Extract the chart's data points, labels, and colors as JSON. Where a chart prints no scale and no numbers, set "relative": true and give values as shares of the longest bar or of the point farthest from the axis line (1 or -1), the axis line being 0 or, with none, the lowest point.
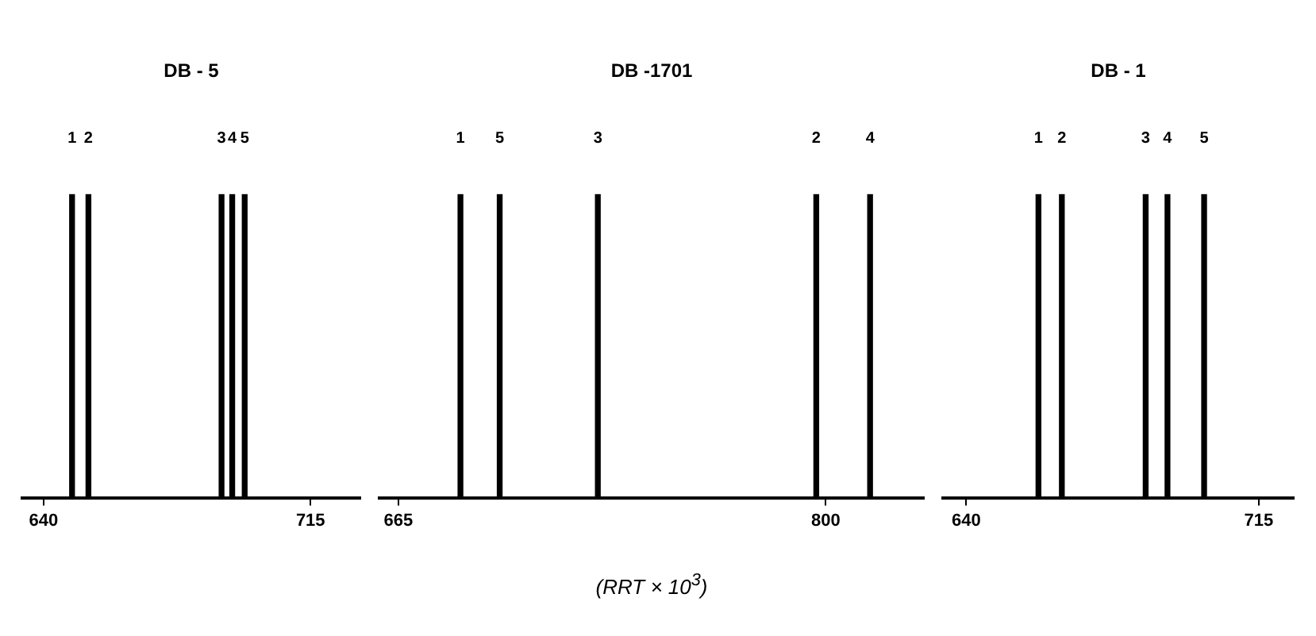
{
  "chart_data": [
    {
      "type": "bar",
      "title": "DB - 5",
      "relative": true,
      "x": [
        648,
        652.6,
        690,
        693,
        696.5
      ],
      "values": [
        1,
        1,
        1,
        1,
        1
      ],
      "color": "#000000",
      "xlim": [
        634,
        729
      ],
      "xticks": [
        640,
        715
      ],
      "annotations": [
        {
          "text": "1",
          "x": 648,
          "y": 1
        },
        {
          "text": "2",
          "x": 652.6,
          "y": 1
        },
        {
          "text": "3",
          "x": 690,
          "y": 1
        },
        {
          "text": "4",
          "x": 693,
          "y": 1
        },
        {
          "text": "5",
          "x": 696.5,
          "y": 1
        }
      ]
    },
    {
      "type": "bar",
      "title": "DB -1701",
      "xlabel": "(RRT × 10$^{3}$)",
      "relative": true,
      "x": [
        684.6,
        697,
        728,
        797,
        814
      ],
      "values": [
        1,
        1,
        1,
        1,
        1
      ],
      "color": "#000000",
      "xlim": [
        659,
        831
      ],
      "xticks": [
        665,
        800
      ],
      "annotations": [
        {
          "text": "1",
          "x": 684.6,
          "y": 1
        },
        {
          "text": "5",
          "x": 697,
          "y": 1
        },
        {
          "text": "3",
          "x": 728,
          "y": 1
        },
        {
          "text": "2",
          "x": 797,
          "y": 1
        },
        {
          "text": "4",
          "x": 814,
          "y": 1
        }
      ]
    },
    {
      "type": "bar",
      "title": "DB - 1",
      "relative": true,
      "x": [
        658.5,
        664.5,
        686,
        691.6,
        701
      ],
      "values": [
        1,
        1,
        1,
        1,
        1
      ],
      "color": "#000000",
      "xlim": [
        634,
        724
      ],
      "xticks": [
        640,
        715
      ],
      "annotations": [
        {
          "text": "1",
          "x": 658.5,
          "y": 1
        },
        {
          "text": "2",
          "x": 664.5,
          "y": 1
        },
        {
          "text": "3",
          "x": 686,
          "y": 1
        },
        {
          "text": "4",
          "x": 691.6,
          "y": 1
        },
        {
          "text": "5",
          "x": 701,
          "y": 1
        }
      ]
    }
  ]
}
